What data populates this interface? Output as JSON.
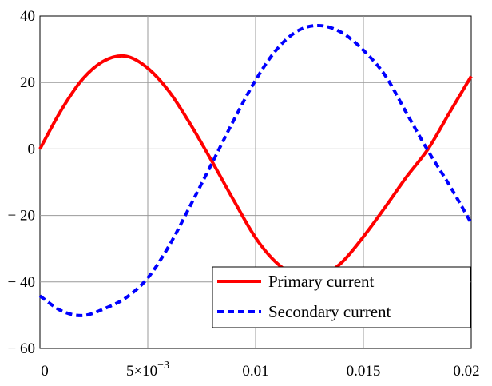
{
  "chart_data": {
    "type": "line",
    "title": "",
    "xlabel": "",
    "ylabel": "",
    "xlim": [
      0,
      0.02
    ],
    "ylim": [
      -60,
      40
    ],
    "grid": true,
    "legend_position": "bottom-right",
    "x_ticks": [
      {
        "value": 0,
        "label": "0"
      },
      {
        "value": 0.005,
        "label": "5×10",
        "exponent": "−3"
      },
      {
        "value": 0.01,
        "label": "0.01"
      },
      {
        "value": 0.015,
        "label": "0.015"
      },
      {
        "value": 0.02,
        "label": "0.02"
      }
    ],
    "y_ticks": [
      {
        "value": 40,
        "label": "40"
      },
      {
        "value": 20,
        "label": "20"
      },
      {
        "value": 0,
        "label": "0"
      },
      {
        "value": -20,
        "label": "− 20"
      },
      {
        "value": -40,
        "label": "− 40"
      },
      {
        "value": -60,
        "label": "− 60"
      }
    ],
    "series": [
      {
        "name": "Primary current",
        "color": "#ff0000",
        "style": "solid",
        "x": [
          0,
          0.001,
          0.002,
          0.003,
          0.004,
          0.005,
          0.006,
          0.007,
          0.008,
          0.009,
          0.01,
          0.011,
          0.012,
          0.013,
          0.014,
          0.015,
          0.016,
          0.017,
          0.018,
          0.019,
          0.02
        ],
        "y": [
          0,
          11.8,
          21.2,
          26.6,
          27.9,
          24.3,
          17.2,
          7.2,
          -4.0,
          -15.6,
          -26.7,
          -34.4,
          -38.4,
          -38.4,
          -34.1,
          -26.4,
          -17.6,
          -8.4,
          0.0,
          11.0,
          21.9
        ]
      },
      {
        "name": "Secondary current",
        "color": "#0000ff",
        "style": "dashed",
        "x": [
          0,
          0.001,
          0.002,
          0.003,
          0.004,
          0.005,
          0.006,
          0.007,
          0.008,
          0.009,
          0.01,
          0.011,
          0.012,
          0.013,
          0.014,
          0.015,
          0.016,
          0.017,
          0.018,
          0.019,
          0.02
        ],
        "y": [
          -44.2,
          -48.7,
          -50.1,
          -48.0,
          -44.7,
          -38.8,
          -29.0,
          -16.7,
          -4.0,
          8.8,
          20.7,
          30.1,
          35.7,
          37.1,
          35.0,
          29.7,
          22.2,
          10.8,
          -0.6,
          -11.0,
          -22.3
        ]
      }
    ]
  }
}
